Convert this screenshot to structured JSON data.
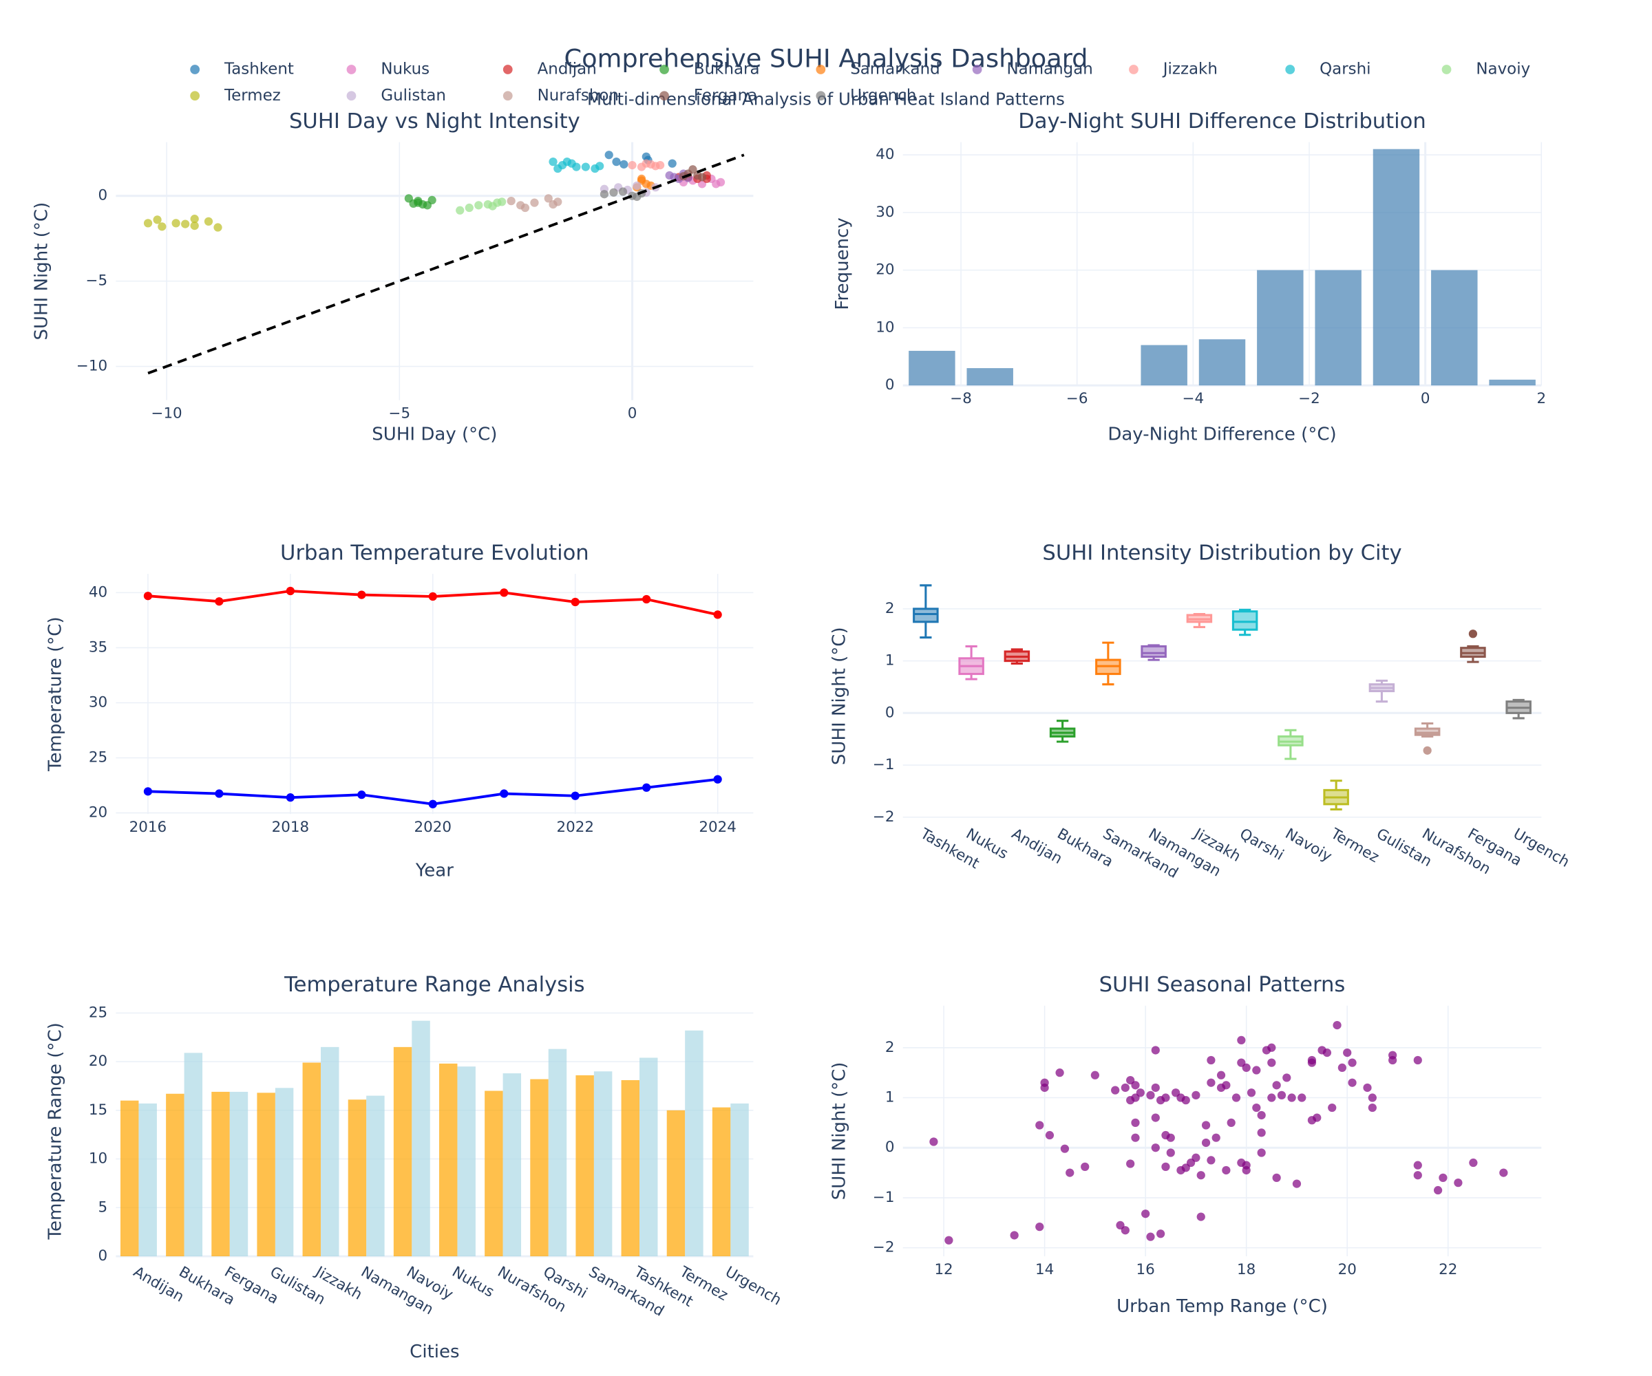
{
  "title": "Comprehensive SUHI Analysis Dashboard",
  "subtitle": "Multi-dimensional Analysis of Urban Heat Island Patterns",
  "chart_data": [
    {
      "type": "scatter",
      "title": "SUHI Day vs Night Intensity",
      "xlabel": "SUHI Day (°C)",
      "ylabel": "SUHI Night (°C)",
      "xlim": [
        -11.09,
        2.6
      ],
      "ylim": [
        -11.98,
        3.15
      ],
      "xticks": [
        {
          "value": -10,
          "label": "−10"
        },
        {
          "value": -5,
          "label": "−5"
        },
        0
      ],
      "yticks": [
        {
          "value": -10,
          "label": "−10"
        },
        {
          "value": -5,
          "label": "−5"
        },
        0
      ],
      "series": [
        {
          "name": "Tashkent",
          "color": "#1f77b4",
          "x": [
            -0.5,
            -0.34,
            -0.18,
            0.34,
            0.86,
            0.3
          ],
          "values": [
            2.4,
            2.0,
            1.85,
            2.1,
            1.9,
            2.3
          ]
        },
        {
          "name": "Nukus",
          "color": "#e377c2",
          "x": [
            1.3,
            1.5,
            1.7,
            1.8,
            1.9,
            1.1
          ],
          "values": [
            0.9,
            0.7,
            1.0,
            0.7,
            0.8,
            0.8
          ]
        },
        {
          "name": "Andijan",
          "color": "#d62728",
          "x": [
            1.2,
            1.4,
            1.6,
            1.6,
            1.0
          ],
          "values": [
            1.1,
            1.0,
            1.2,
            1.0,
            1.1
          ]
        },
        {
          "name": "Bukhara",
          "color": "#2ca02c",
          "x": [
            -4.8,
            -4.7,
            -4.6,
            -4.5,
            -4.4,
            -4.3,
            -4.6
          ],
          "values": [
            -0.15,
            -0.45,
            -0.3,
            -0.5,
            -0.55,
            -0.25,
            -0.4
          ]
        },
        {
          "name": "Samarkand",
          "color": "#ff7f0e",
          "x": [
            0.1,
            0.2,
            0.3,
            0.4,
            0.2
          ],
          "values": [
            0.5,
            0.9,
            0.7,
            0.6,
            1.0
          ]
        },
        {
          "name": "Namangan",
          "color": "#9467bd",
          "x": [
            0.8,
            1.0,
            1.1,
            0.9,
            1.2
          ],
          "values": [
            1.2,
            1.0,
            1.3,
            1.1,
            1.05
          ]
        },
        {
          "name": "Jizzakh",
          "color": "#ff9896",
          "x": [
            0.0,
            0.2,
            0.3,
            0.4,
            0.5,
            0.6
          ],
          "values": [
            1.8,
            1.7,
            1.9,
            1.85,
            1.75,
            1.8
          ]
        },
        {
          "name": "Qarshi",
          "color": "#17becf",
          "x": [
            -1.7,
            -1.6,
            -1.5,
            -1.3,
            -1.2,
            -1.0,
            -0.8,
            -0.7,
            -1.4
          ],
          "values": [
            2.0,
            1.6,
            1.8,
            1.9,
            1.7,
            1.7,
            1.6,
            1.75,
            2.0
          ]
        },
        {
          "name": "Navoiy",
          "color": "#98df8a",
          "x": [
            -3.7,
            -3.5,
            -3.3,
            -3.1,
            -2.9,
            -3.0,
            -2.8
          ],
          "values": [
            -0.85,
            -0.7,
            -0.55,
            -0.5,
            -0.4,
            -0.6,
            -0.35
          ]
        },
        {
          "name": "Termez",
          "color": "#bcbd22",
          "x": [
            -10.4,
            -10.2,
            -10.1,
            -9.8,
            -9.6,
            -9.4,
            -9.1,
            -8.9,
            -9.4
          ],
          "values": [
            -1.6,
            -1.4,
            -1.8,
            -1.6,
            -1.65,
            -1.35,
            -1.5,
            -1.85,
            -1.75
          ]
        },
        {
          "name": "Gulistan",
          "color": "#c5b0d5",
          "x": [
            -0.6,
            -0.3,
            -0.1,
            0.1,
            0.3,
            0.5
          ],
          "values": [
            0.4,
            0.5,
            0.35,
            0.6,
            0.2,
            0.5
          ]
        },
        {
          "name": "Nurafshon",
          "color": "#c49c94",
          "x": [
            -2.6,
            -2.3,
            -2.1,
            -1.8,
            -1.6,
            -1.7,
            -2.4
          ],
          "values": [
            -0.3,
            -0.7,
            -0.4,
            -0.15,
            -0.35,
            -0.5,
            -0.55
          ]
        },
        {
          "name": "Fergana",
          "color": "#8c564b",
          "x": [
            1.2,
            1.3,
            1.1,
            1.4,
            1.5
          ],
          "values": [
            1.3,
            1.55,
            1.15,
            1.2,
            1.1
          ]
        },
        {
          "name": "Urgench",
          "color": "#7f7f7f",
          "x": [
            -0.6,
            -0.4,
            -0.2,
            0.0,
            0.2,
            0.1
          ],
          "values": [
            0.1,
            0.2,
            0.25,
            0.0,
            0.15,
            -0.05
          ]
        },
        {
          "color": "#000000",
          "style": "dash",
          "x": [
            -10.4,
            2.4
          ],
          "values": [
            -10.4,
            2.4
          ]
        }
      ]
    },
    {
      "type": "histogram",
      "title": "Day-Night SUHI Difference Distribution",
      "xlabel": "Day-Night Difference (°C)",
      "ylabel": "Frequency",
      "xlim": [
        -9,
        2
      ],
      "ylim": [
        0,
        42.2
      ],
      "xticks": [
        {
          "value": -8,
          "label": "−8"
        },
        {
          "value": -6,
          "label": "−6"
        },
        {
          "value": -4,
          "label": "−4"
        },
        {
          "value": -2,
          "label": "−2"
        },
        0,
        2
      ],
      "yticks": [
        0,
        10,
        20,
        30,
        40
      ],
      "color": "#4682b4",
      "bins": [
        -9,
        -8,
        -7,
        -6,
        -5,
        -4,
        -3,
        -2,
        -1,
        0,
        1,
        2
      ],
      "values": [
        6,
        3,
        0,
        0,
        7,
        8,
        20,
        20,
        41,
        20,
        1
      ]
    },
    {
      "type": "line",
      "title": "Urban Temperature Evolution",
      "xlabel": "Year",
      "ylabel": "Temperature (°C)",
      "xlim": [
        2015.55,
        2024.5
      ],
      "ylim": [
        19.9,
        41.7
      ],
      "xticks": [
        2016,
        2018,
        2020,
        2022,
        2024
      ],
      "yticks": [
        20,
        25,
        30,
        35,
        40
      ],
      "x": [
        2016,
        2017,
        2018,
        2019,
        2020,
        2021,
        2022,
        2023,
        2024
      ],
      "series": [
        {
          "color": "#ff0000",
          "values": [
            39.7,
            39.2,
            40.15,
            39.8,
            39.65,
            40.0,
            39.15,
            39.4,
            38.0
          ]
        },
        {
          "color": "#0000ff",
          "values": [
            21.95,
            21.75,
            21.4,
            21.65,
            20.8,
            21.75,
            21.55,
            22.3,
            23.05
          ]
        }
      ]
    },
    {
      "type": "box",
      "title": "SUHI Intensity Distribution by City",
      "ylabel": "SUHI Night (°C)",
      "ylim": [
        -2.02,
        2.67
      ],
      "yticks": [
        {
          "value": -2,
          "label": "−2"
        },
        {
          "value": -1,
          "label": "−1"
        },
        0,
        1,
        2
      ],
      "boxes": [
        {
          "name": "Tashkent",
          "color": "#1f77b4",
          "stats": [
            1.45,
            1.75,
            1.9,
            2.0,
            2.45
          ]
        },
        {
          "name": "Nukus",
          "color": "#e377c2",
          "stats": [
            0.65,
            0.75,
            0.9,
            1.05,
            1.28
          ]
        },
        {
          "name": "Andijan",
          "color": "#d62728",
          "stats": [
            0.95,
            1.0,
            1.08,
            1.18,
            1.22
          ]
        },
        {
          "name": "Bukhara",
          "color": "#2ca02c",
          "stats": [
            -0.55,
            -0.45,
            -0.38,
            -0.3,
            -0.15
          ]
        },
        {
          "name": "Samarkand",
          "color": "#ff7f0e",
          "stats": [
            0.55,
            0.75,
            0.9,
            1.02,
            1.35
          ]
        },
        {
          "name": "Namangan",
          "color": "#9467bd",
          "stats": [
            1.02,
            1.08,
            1.15,
            1.28,
            1.3
          ]
        },
        {
          "name": "Jizzakh",
          "color": "#ff9896",
          "stats": [
            1.65,
            1.75,
            1.8,
            1.88,
            1.9
          ]
        },
        {
          "name": "Qarshi",
          "color": "#17becf",
          "stats": [
            1.5,
            1.6,
            1.75,
            1.95,
            1.98
          ]
        },
        {
          "name": "Navoiy",
          "color": "#98df8a",
          "stats": [
            -0.88,
            -0.62,
            -0.55,
            -0.45,
            -0.33
          ]
        },
        {
          "name": "Termez",
          "color": "#bcbd22",
          "stats": [
            -1.85,
            -1.75,
            -1.62,
            -1.48,
            -1.3
          ]
        },
        {
          "name": "Gulistan",
          "color": "#c5b0d5",
          "stats": [
            0.22,
            0.42,
            0.48,
            0.55,
            0.62
          ]
        },
        {
          "name": "Nurafshon",
          "color": "#c49c94",
          "stats": [
            -0.45,
            -0.42,
            -0.38,
            -0.3,
            -0.2
          ],
          "outliers": [
            -0.72
          ]
        },
        {
          "name": "Fergana",
          "color": "#8c564b",
          "stats": [
            0.98,
            1.08,
            1.15,
            1.25,
            1.28
          ],
          "outliers": [
            1.52
          ]
        },
        {
          "name": "Urgench",
          "color": "#7f7f7f",
          "stats": [
            -0.1,
            0.0,
            0.1,
            0.22,
            0.25
          ]
        }
      ]
    },
    {
      "type": "bar",
      "title": "Temperature Range Analysis",
      "xlabel": "Cities",
      "ylabel": "Temperature Range (°C)",
      "ylim": [
        0,
        25.75
      ],
      "yticks": [
        0,
        5,
        10,
        15,
        20,
        25
      ],
      "categories": [
        "Andijan",
        "Bukhara",
        "Fergana",
        "Gulistan",
        "Jizzakh",
        "Namangan",
        "Navoiy",
        "Nukus",
        "Nurafshon",
        "Qarshi",
        "Samarkand",
        "Tashkent",
        "Termez",
        "Urgench"
      ],
      "series": [
        {
          "color": "#ffa500",
          "values": [
            16.0,
            16.7,
            16.9,
            16.8,
            19.9,
            16.1,
            21.5,
            19.8,
            17.0,
            18.2,
            18.6,
            18.1,
            15.0,
            15.3
          ]
        },
        {
          "color": "#add8e6",
          "values": [
            15.7,
            20.9,
            16.9,
            17.3,
            21.5,
            16.5,
            24.2,
            19.5,
            18.8,
            21.3,
            19.0,
            20.4,
            23.2,
            15.7
          ]
        }
      ]
    },
    {
      "type": "scatter",
      "title": "SUHI Seasonal Patterns",
      "xlabel": "Urban Temp Range (°C)",
      "ylabel": "SUHI Night (°C)",
      "xlim": [
        11.19,
        23.85
      ],
      "ylim": [
        -2.17,
        2.84
      ],
      "xticks": [
        12,
        14,
        16,
        18,
        20,
        22
      ],
      "yticks": [
        {
          "value": -2,
          "label": "−2"
        },
        {
          "value": -1,
          "label": "−1"
        },
        0,
        1,
        2
      ],
      "series": [
        {
          "color": "#800080",
          "x": [
            11.8,
            12.1,
            13.4,
            13.9,
            13.9,
            14.0,
            14.0,
            14.1,
            14.3,
            14.4,
            14.5,
            14.8,
            15.0,
            15.4,
            15.5,
            15.6,
            15.6,
            15.7,
            15.7,
            15.7,
            15.8,
            15.8,
            15.8,
            15.8,
            15.9,
            16.0,
            16.1,
            16.1,
            16.2,
            16.2,
            16.2,
            16.2,
            16.3,
            16.3,
            16.4,
            16.4,
            16.4,
            16.5,
            16.5,
            16.6,
            16.7,
            16.7,
            16.8,
            16.8,
            16.9,
            17.0,
            17.0,
            17.1,
            17.1,
            17.2,
            17.2,
            17.3,
            17.3,
            17.3,
            17.4,
            17.5,
            17.5,
            17.6,
            17.6,
            17.7,
            17.8,
            17.9,
            17.9,
            17.9,
            18.0,
            18.0,
            18.0,
            18.1,
            18.2,
            18.2,
            18.3,
            18.3,
            18.3,
            18.4,
            18.5,
            18.5,
            18.5,
            18.6,
            18.6,
            18.7,
            18.8,
            18.9,
            19.0,
            19.1,
            19.3,
            19.3,
            19.3,
            19.4,
            19.5,
            19.6,
            19.7,
            19.8,
            19.9,
            20.0,
            20.1,
            20.1,
            20.4,
            20.5,
            20.5,
            20.9,
            20.9,
            21.4,
            21.4,
            21.4,
            21.8,
            21.9,
            22.2,
            22.5,
            23.1
          ],
          "values": [
            0.12,
            -1.85,
            -1.75,
            -1.58,
            0.45,
            1.2,
            1.3,
            0.25,
            1.5,
            -0.02,
            -0.5,
            -0.38,
            1.45,
            1.15,
            -1.55,
            -1.65,
            1.2,
            1.35,
            0.95,
            -0.32,
            1.25,
            0.5,
            0.2,
            1.0,
            1.1,
            -1.32,
            -1.78,
            1.05,
            1.95,
            1.2,
            0.6,
            0.0,
            -1.72,
            0.95,
            1.0,
            0.25,
            -0.38,
            0.2,
            -0.1,
            1.1,
            1.0,
            -0.45,
            0.95,
            -0.4,
            -0.3,
            1.05,
            -0.2,
            -1.38,
            -0.55,
            0.1,
            0.45,
            1.75,
            1.3,
            -0.25,
            0.2,
            1.2,
            1.45,
            1.25,
            -0.45,
            0.5,
            1.0,
            2.15,
            1.7,
            -0.3,
            1.6,
            -0.45,
            -0.35,
            1.1,
            1.55,
            0.8,
            0.65,
            -0.1,
            0.3,
            1.95,
            2.0,
            1.7,
            1.0,
            1.25,
            -0.6,
            1.05,
            1.4,
            1.0,
            -0.72,
            1.0,
            1.75,
            1.7,
            0.55,
            0.6,
            1.95,
            1.9,
            0.8,
            2.45,
            1.6,
            1.9,
            1.7,
            1.3,
            1.2,
            1.0,
            0.8,
            1.75,
            1.85,
            1.75,
            -0.55,
            -0.35,
            -0.85,
            -0.6,
            -0.7,
            -0.3,
            -0.5
          ]
        }
      ]
    }
  ]
}
